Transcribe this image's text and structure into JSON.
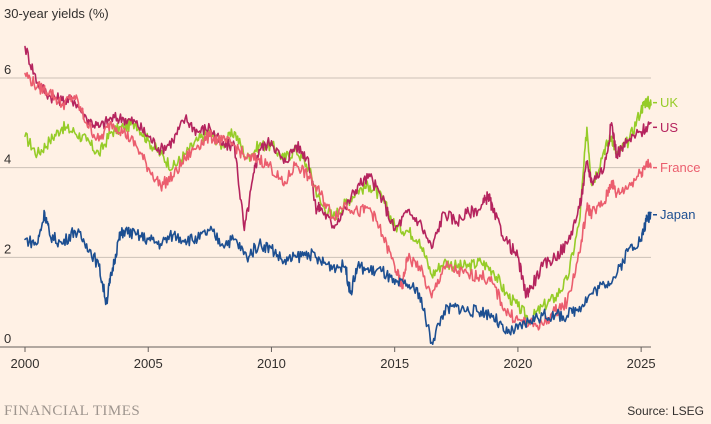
{
  "chart_data": {
    "type": "line",
    "title": "30-year yields (%)",
    "xlabel": "",
    "ylabel": "",
    "xlim": [
      2000,
      2025.4
    ],
    "ylim": [
      0,
      6
    ],
    "yticks": [
      0,
      2,
      4,
      6
    ],
    "xticks": [
      2000,
      2005,
      2010,
      2015,
      2020,
      2025
    ],
    "grid": true,
    "legend": "inline-right",
    "series": [
      {
        "name": "UK",
        "color": "#96cc28",
        "points": [
          [
            2000,
            4.7
          ],
          [
            2000.5,
            4.3
          ],
          [
            2001,
            4.6
          ],
          [
            2001.5,
            4.9
          ],
          [
            2002,
            4.8
          ],
          [
            2002.5,
            4.6
          ],
          [
            2003,
            4.3
          ],
          [
            2003.5,
            4.8
          ],
          [
            2004,
            4.9
          ],
          [
            2004.5,
            5.0
          ],
          [
            2005,
            4.6
          ],
          [
            2005.5,
            4.3
          ],
          [
            2006,
            4.0
          ],
          [
            2006.5,
            4.3
          ],
          [
            2007,
            4.6
          ],
          [
            2007.5,
            4.8
          ],
          [
            2008,
            4.5
          ],
          [
            2008.5,
            4.8
          ],
          [
            2009,
            4.2
          ],
          [
            2009.5,
            4.5
          ],
          [
            2010,
            4.5
          ],
          [
            2010.5,
            4.2
          ],
          [
            2011,
            4.4
          ],
          [
            2011.5,
            4.0
          ],
          [
            2012,
            3.2
          ],
          [
            2012.5,
            2.9
          ],
          [
            2013,
            3.2
          ],
          [
            2013.5,
            3.5
          ],
          [
            2014,
            3.6
          ],
          [
            2014.5,
            3.3
          ],
          [
            2015,
            2.7
          ],
          [
            2015.5,
            2.6
          ],
          [
            2016,
            2.4
          ],
          [
            2016.5,
            1.6
          ],
          [
            2017,
            1.9
          ],
          [
            2017.5,
            1.8
          ],
          [
            2018,
            1.8
          ],
          [
            2018.5,
            1.9
          ],
          [
            2019,
            1.7
          ],
          [
            2019.5,
            1.2
          ],
          [
            2020,
            0.9
          ],
          [
            2020.5,
            0.6
          ],
          [
            2021,
            0.9
          ],
          [
            2021.5,
            1.1
          ],
          [
            2022,
            1.5
          ],
          [
            2022.5,
            2.8
          ],
          [
            2022.8,
            4.9
          ],
          [
            2023,
            3.6
          ],
          [
            2023.5,
            4.4
          ],
          [
            2023.8,
            4.7
          ],
          [
            2024,
            4.3
          ],
          [
            2024.5,
            4.6
          ],
          [
            2025,
            5.3
          ],
          [
            2025.2,
            5.5
          ],
          [
            2025.4,
            5.4
          ]
        ]
      },
      {
        "name": "US",
        "color": "#b5245e",
        "points": [
          [
            2000,
            6.7
          ],
          [
            2000.5,
            5.9
          ],
          [
            2001,
            5.6
          ],
          [
            2001.5,
            5.5
          ],
          [
            2002,
            5.5
          ],
          [
            2002.5,
            5.1
          ],
          [
            2003,
            4.9
          ],
          [
            2003.5,
            5.1
          ],
          [
            2004,
            5.1
          ],
          [
            2004.5,
            5.0
          ],
          [
            2005,
            4.7
          ],
          [
            2005.5,
            4.4
          ],
          [
            2006,
            4.6
          ],
          [
            2006.5,
            5.1
          ],
          [
            2007,
            4.8
          ],
          [
            2007.5,
            4.9
          ],
          [
            2008,
            4.5
          ],
          [
            2008.5,
            4.5
          ],
          [
            2008.9,
            2.6
          ],
          [
            2009.3,
            3.9
          ],
          [
            2009.5,
            4.4
          ],
          [
            2010,
            4.6
          ],
          [
            2010.5,
            4.1
          ],
          [
            2011,
            4.5
          ],
          [
            2011.5,
            4.2
          ],
          [
            2011.8,
            3.1
          ],
          [
            2012,
            3.1
          ],
          [
            2012.5,
            2.7
          ],
          [
            2013,
            3.1
          ],
          [
            2013.5,
            3.6
          ],
          [
            2014,
            3.8
          ],
          [
            2014.5,
            3.3
          ],
          [
            2015,
            2.6
          ],
          [
            2015.5,
            3.0
          ],
          [
            2016,
            2.8
          ],
          [
            2016.5,
            2.2
          ],
          [
            2017,
            3.0
          ],
          [
            2017.5,
            2.8
          ],
          [
            2018,
            3.0
          ],
          [
            2018.5,
            3.1
          ],
          [
            2018.8,
            3.4
          ],
          [
            2019,
            3.0
          ],
          [
            2019.5,
            2.4
          ],
          [
            2020,
            2.0
          ],
          [
            2020.3,
            1.2
          ],
          [
            2020.5,
            1.3
          ],
          [
            2021,
            1.8
          ],
          [
            2021.5,
            2.0
          ],
          [
            2022,
            2.3
          ],
          [
            2022.5,
            3.1
          ],
          [
            2022.8,
            4.1
          ],
          [
            2023,
            3.7
          ],
          [
            2023.5,
            4.0
          ],
          [
            2023.8,
            5.0
          ],
          [
            2024,
            4.3
          ],
          [
            2024.5,
            4.6
          ],
          [
            2025,
            4.8
          ],
          [
            2025.4,
            5.0
          ]
        ]
      },
      {
        "name": "France",
        "color": "#eb5e6e",
        "points": [
          [
            2000,
            6.1
          ],
          [
            2000.5,
            5.8
          ],
          [
            2001,
            5.7
          ],
          [
            2001.5,
            5.4
          ],
          [
            2002,
            5.6
          ],
          [
            2002.5,
            5.0
          ],
          [
            2003,
            4.6
          ],
          [
            2003.5,
            5.0
          ],
          [
            2004,
            4.8
          ],
          [
            2004.5,
            4.5
          ],
          [
            2005,
            4.0
          ],
          [
            2005.5,
            3.6
          ],
          [
            2006,
            3.8
          ],
          [
            2006.5,
            4.2
          ],
          [
            2007,
            4.5
          ],
          [
            2007.5,
            4.7
          ],
          [
            2008,
            4.6
          ],
          [
            2008.5,
            4.5
          ],
          [
            2009,
            4.2
          ],
          [
            2009.5,
            4.2
          ],
          [
            2010,
            4.0
          ],
          [
            2010.5,
            3.6
          ],
          [
            2011,
            4.1
          ],
          [
            2011.5,
            3.8
          ],
          [
            2012,
            3.4
          ],
          [
            2012.5,
            2.9
          ],
          [
            2013,
            3.2
          ],
          [
            2013.5,
            3.0
          ],
          [
            2014,
            3.1
          ],
          [
            2014.5,
            2.5
          ],
          [
            2015,
            1.8
          ],
          [
            2015.3,
            1.3
          ],
          [
            2015.5,
            2.0
          ],
          [
            2016,
            1.8
          ],
          [
            2016.5,
            1.1
          ],
          [
            2017,
            1.8
          ],
          [
            2017.5,
            1.7
          ],
          [
            2018,
            1.6
          ],
          [
            2018.5,
            1.6
          ],
          [
            2019,
            1.4
          ],
          [
            2019.5,
            0.8
          ],
          [
            2020,
            0.6
          ],
          [
            2020.5,
            0.5
          ],
          [
            2021,
            0.5
          ],
          [
            2021.5,
            0.8
          ],
          [
            2022,
            1.0
          ],
          [
            2022.5,
            2.1
          ],
          [
            2022.8,
            3.1
          ],
          [
            2023,
            3.0
          ],
          [
            2023.5,
            3.2
          ],
          [
            2023.8,
            3.7
          ],
          [
            2024,
            3.4
          ],
          [
            2024.5,
            3.6
          ],
          [
            2025,
            3.9
          ],
          [
            2025.2,
            4.1
          ],
          [
            2025.4,
            4.0
          ]
        ]
      },
      {
        "name": "Japan",
        "color": "#1d4f91",
        "points": [
          [
            2000,
            2.4
          ],
          [
            2000.5,
            2.3
          ],
          [
            2000.8,
            3.0
          ],
          [
            2001,
            2.5
          ],
          [
            2001.5,
            2.3
          ],
          [
            2002,
            2.6
          ],
          [
            2002.5,
            2.3
          ],
          [
            2003,
            1.8
          ],
          [
            2003.3,
            1.0
          ],
          [
            2003.5,
            1.6
          ],
          [
            2003.8,
            2.4
          ],
          [
            2004,
            2.6
          ],
          [
            2004.5,
            2.5
          ],
          [
            2005,
            2.4
          ],
          [
            2005.5,
            2.3
          ],
          [
            2006,
            2.5
          ],
          [
            2006.5,
            2.4
          ],
          [
            2007,
            2.4
          ],
          [
            2007.5,
            2.6
          ],
          [
            2008,
            2.3
          ],
          [
            2008.5,
            2.4
          ],
          [
            2009,
            2.0
          ],
          [
            2009.5,
            2.3
          ],
          [
            2010,
            2.2
          ],
          [
            2010.5,
            1.9
          ],
          [
            2011,
            2.0
          ],
          [
            2011.5,
            2.1
          ],
          [
            2012,
            1.9
          ],
          [
            2012.5,
            1.8
          ],
          [
            2013,
            1.8
          ],
          [
            2013.2,
            1.2
          ],
          [
            2013.5,
            1.8
          ],
          [
            2014,
            1.7
          ],
          [
            2014.5,
            1.7
          ],
          [
            2015,
            1.4
          ],
          [
            2015.5,
            1.4
          ],
          [
            2016,
            1.2
          ],
          [
            2016.5,
            0.1
          ],
          [
            2017,
            0.8
          ],
          [
            2017.5,
            0.9
          ],
          [
            2018,
            0.8
          ],
          [
            2018.5,
            0.8
          ],
          [
            2019,
            0.7
          ],
          [
            2019.5,
            0.3
          ],
          [
            2020,
            0.4
          ],
          [
            2020.5,
            0.6
          ],
          [
            2021,
            0.7
          ],
          [
            2021.5,
            0.7
          ],
          [
            2022,
            0.7
          ],
          [
            2022.5,
            0.9
          ],
          [
            2023,
            1.2
          ],
          [
            2023.5,
            1.4
          ],
          [
            2024,
            1.6
          ],
          [
            2024.5,
            2.2
          ],
          [
            2025,
            2.4
          ],
          [
            2025.2,
            2.8
          ],
          [
            2025.4,
            3.0
          ]
        ]
      }
    ]
  },
  "branding": {
    "publisher": "FINANCIAL TIMES",
    "source": "Source: LSEG"
  }
}
